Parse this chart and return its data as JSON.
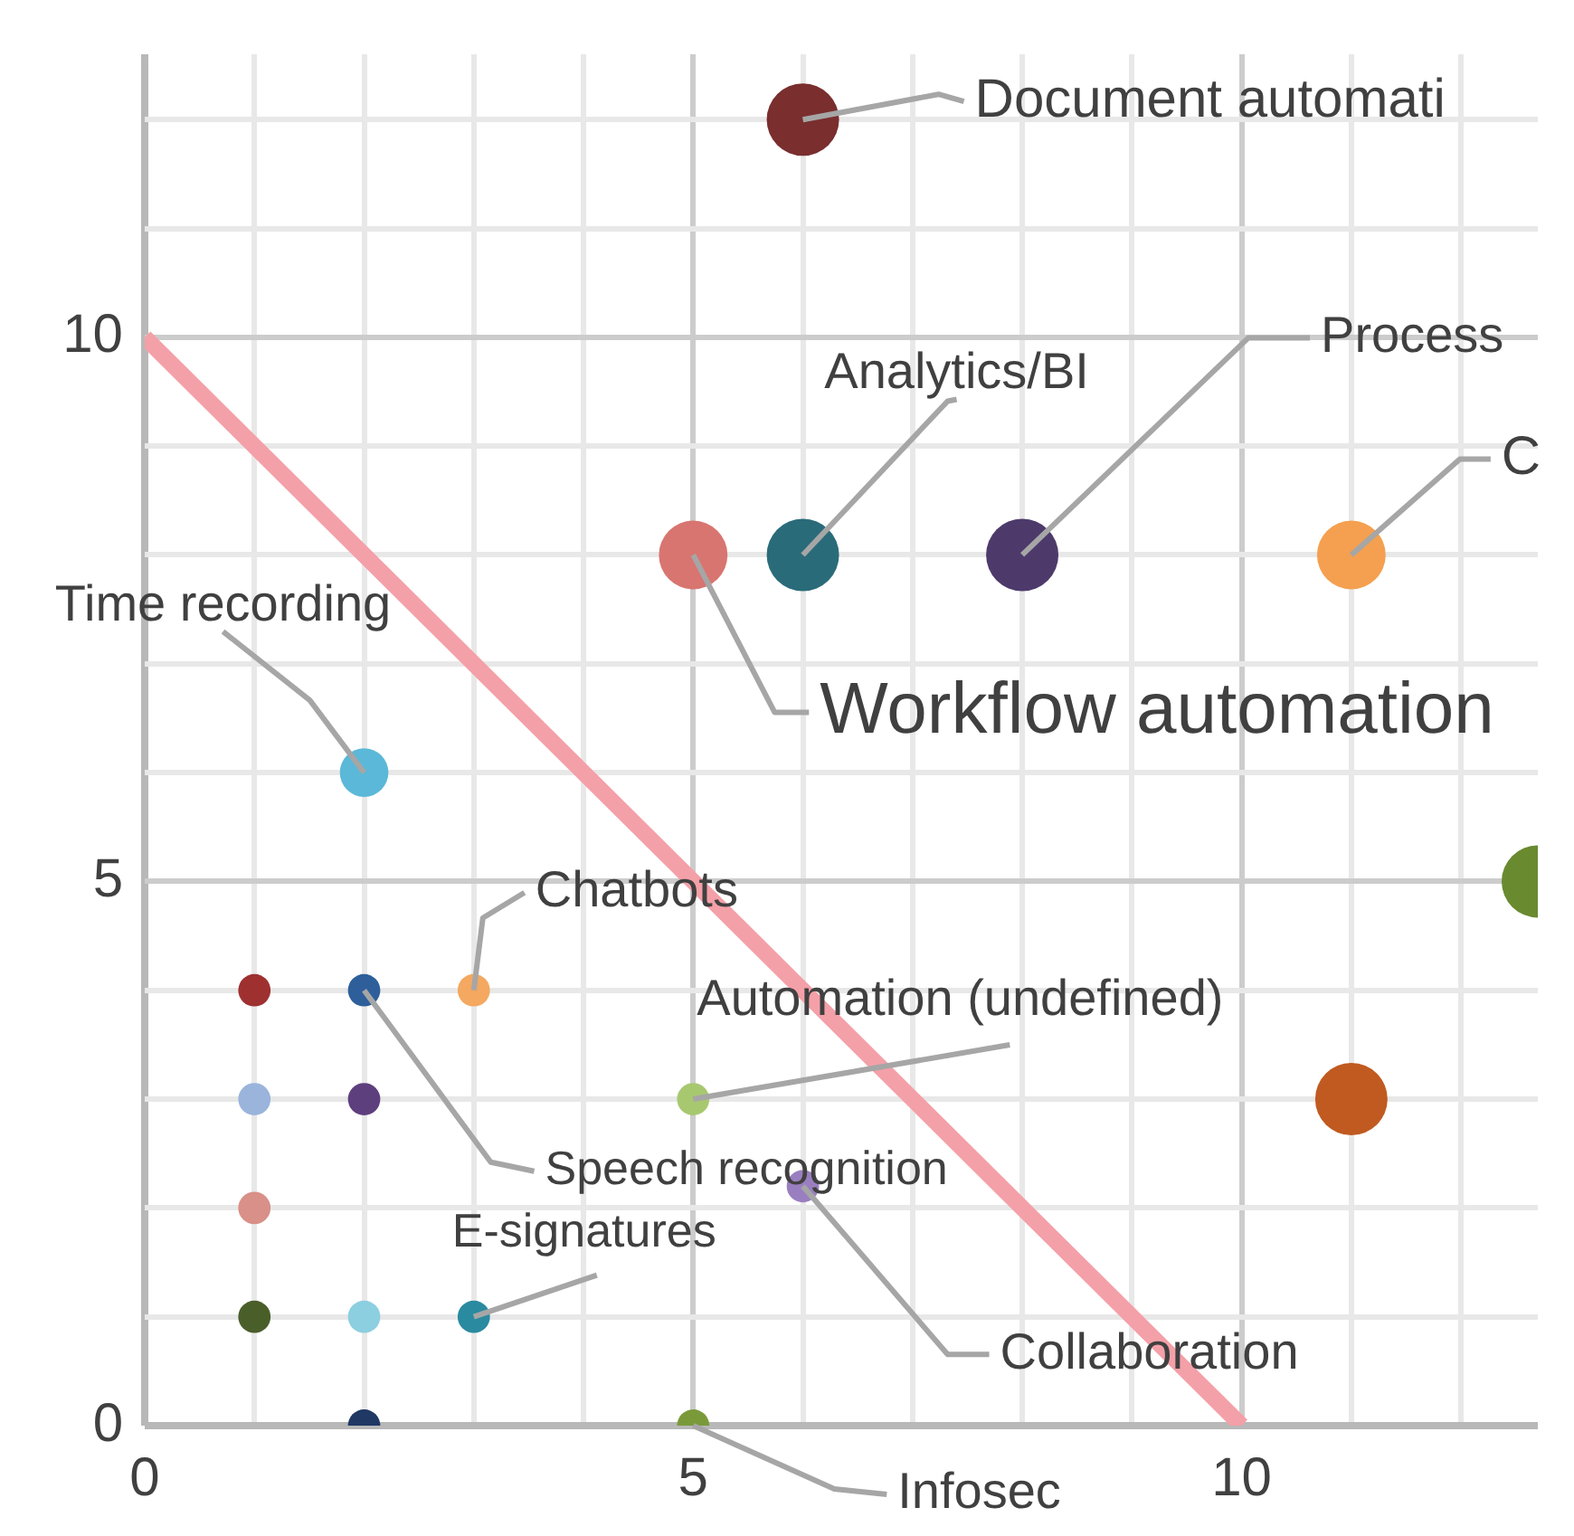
{
  "chart_data": {
    "type": "bubble",
    "xlim": [
      0,
      12.7
    ],
    "ylim": [
      0,
      12.6
    ],
    "xticks": [
      0,
      {
        "value": 1,
        "label": null
      },
      {
        "value": 2,
        "label": null
      },
      {
        "value": 3,
        "label": null
      },
      {
        "value": 4,
        "label": null
      },
      5,
      {
        "value": 6,
        "label": null
      },
      {
        "value": 7,
        "label": null
      },
      {
        "value": 8,
        "label": null
      },
      {
        "value": 9,
        "label": null
      },
      10,
      {
        "value": 11,
        "label": null
      },
      {
        "value": 12,
        "label": null
      }
    ],
    "yticks": [
      0,
      {
        "value": 1,
        "label": null
      },
      {
        "value": 2,
        "label": null
      },
      {
        "value": 3,
        "label": null
      },
      {
        "value": 4,
        "label": null
      },
      5,
      {
        "value": 6,
        "label": null
      },
      {
        "value": 7,
        "label": null
      },
      {
        "value": 8,
        "label": null
      },
      {
        "value": 9,
        "label": null
      },
      10,
      {
        "value": 11,
        "label": null
      },
      {
        "value": 12,
        "label": null
      }
    ],
    "grid": true,
    "legend": false,
    "series": [
      {
        "x": [
          6,
          5,
          6,
          8,
          11,
          2,
          1,
          2,
          3,
          1,
          2,
          5,
          1,
          6,
          1,
          2,
          3,
          2,
          5,
          11,
          12.7
        ],
        "values": [
          12,
          8,
          8,
          8,
          8,
          6,
          4,
          4,
          4,
          3,
          3,
          3,
          2,
          2.2,
          1,
          1,
          1,
          0,
          0,
          3,
          5
        ],
        "sizes": [
          1,
          0.9,
          1,
          1,
          0.9,
          0.45,
          0.2,
          0.2,
          0.2,
          0.2,
          0.2,
          0.2,
          0.2,
          0.2,
          0.2,
          0.2,
          0.2,
          0.2,
          0.2,
          1,
          1
        ],
        "colors": [
          "#7a2e2e",
          "#d87570",
          "#2a6b7a",
          "#4d3a6b",
          "#f4a050",
          "#5bb8d8",
          "#9e3030",
          "#2e5f9a",
          "#f4a860",
          "#9ab4dc",
          "#5e3f7e",
          "#a8c870",
          "#d89088",
          "#9a7fc0",
          "#4a5e2a",
          "#8ccfe0",
          "#2a8aa0",
          "#1f3864",
          "#7a9a3a",
          "#c05a20",
          "#6a8a30"
        ]
      },
      {
        "type": "line",
        "x": [
          0,
          10
        ],
        "values": [
          10,
          0
        ],
        "color": "#f4a0a8"
      }
    ],
    "annotations": [
      {
        "text": "Document automati",
        "x": 6,
        "y": 12
      },
      {
        "text": "Workflow automation",
        "x": 5,
        "y": 8
      },
      {
        "text": "Analytics/BI",
        "x": 6,
        "y": 8
      },
      {
        "text": "Process",
        "x": 8,
        "y": 8
      },
      {
        "text": "C",
        "x": 11,
        "y": 8
      },
      {
        "text": "Time recording",
        "x": 2,
        "y": 6
      },
      {
        "text": "Chatbots",
        "x": 3,
        "y": 4
      },
      {
        "text": "Speech recognition",
        "x": 2,
        "y": 4
      },
      {
        "text": "Automation (undefined)",
        "x": 5,
        "y": 3
      },
      {
        "text": "Collaboration",
        "x": 6,
        "y": 2.2
      },
      {
        "text": "E-signatures",
        "x": 3,
        "y": 1
      },
      {
        "text": "Infosec",
        "x": 5,
        "y": 0
      }
    ]
  }
}
